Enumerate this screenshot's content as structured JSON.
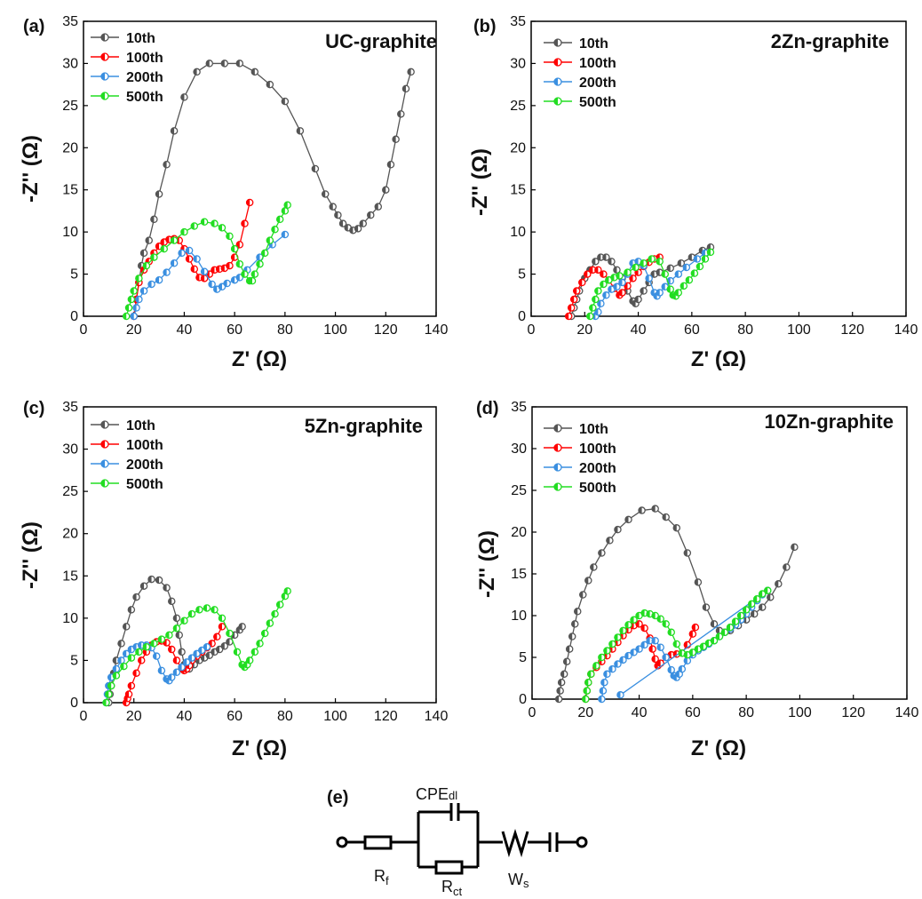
{
  "chart_data": [
    {
      "type": "scatter",
      "panel_label": "(a)",
      "title": "UC-graphite",
      "xlabel": "Z' (Ω)",
      "ylabel": "-Z'' (Ω)",
      "xlim": [
        0,
        140
      ],
      "ylim": [
        0,
        35
      ],
      "xticks": [
        "0",
        "20",
        "40",
        "60",
        "80",
        "100",
        "120",
        "140"
      ],
      "yticks": [
        "0",
        "5",
        "10",
        "15",
        "20",
        "25",
        "30",
        "35"
      ],
      "legend_position": "top-left",
      "series": [
        {
          "name": "10th",
          "color": "#555555",
          "x": [
            20,
            21,
            22,
            23,
            24,
            26,
            28,
            30,
            33,
            36,
            40,
            45,
            50,
            56,
            62,
            68,
            74,
            80,
            86,
            92,
            96,
            99,
            101,
            103,
            105,
            107,
            109,
            111,
            114,
            117,
            120,
            122,
            124,
            126,
            128,
            130
          ],
          "y": [
            0,
            2,
            4,
            6,
            7.5,
            9,
            11.5,
            14.5,
            18,
            22,
            26,
            29,
            30,
            30,
            30,
            29,
            27.5,
            25.5,
            22,
            17.5,
            14.5,
            13,
            12,
            11,
            10.5,
            10.2,
            10.4,
            11,
            12,
            13,
            15,
            18,
            21,
            24,
            27,
            29
          ]
        },
        {
          "name": "100th",
          "color": "#ff0000",
          "x": [
            20,
            21,
            22,
            24,
            26,
            28,
            30,
            32,
            34,
            36,
            38,
            40,
            42,
            44,
            46,
            48,
            50,
            52,
            54,
            56,
            58,
            60,
            62,
            64,
            66
          ],
          "y": [
            0,
            2,
            4,
            5.5,
            6.5,
            7.5,
            8.3,
            8.8,
            9.1,
            9.2,
            9.0,
            8.0,
            6.8,
            5.6,
            4.6,
            4.5,
            5.0,
            5.5,
            5.6,
            5.7,
            6.0,
            7.0,
            8.5,
            11,
            13.5
          ]
        },
        {
          "name": "200th",
          "color": "#3a8fe0",
          "x": [
            20,
            21,
            22,
            24,
            27,
            30,
            33,
            36,
            39,
            42,
            45,
            48,
            51,
            53,
            55,
            57,
            60,
            62,
            65,
            70,
            75,
            80
          ],
          "y": [
            0,
            1,
            2,
            3,
            3.8,
            4.3,
            5.2,
            6.3,
            7.5,
            7.8,
            6.8,
            5.3,
            3.8,
            3.2,
            3.5,
            3.9,
            4.3,
            4.6,
            5.5,
            7.0,
            8.5,
            9.7
          ]
        },
        {
          "name": "500th",
          "color": "#22dd22",
          "x": [
            17,
            18,
            19,
            20,
            22,
            25,
            28,
            32,
            36,
            40,
            44,
            48,
            52,
            55,
            58,
            60,
            62,
            64,
            66,
            67,
            68,
            70,
            72,
            74,
            76,
            78,
            80,
            81
          ],
          "y": [
            0,
            1,
            2,
            3,
            4.5,
            6,
            7,
            8,
            9,
            10,
            10.7,
            11.2,
            11,
            10.5,
            9.5,
            8,
            6.2,
            5,
            4.2,
            4.2,
            5,
            6.2,
            7.5,
            9,
            10.3,
            11.5,
            12.5,
            13.2
          ]
        }
      ]
    },
    {
      "type": "scatter",
      "panel_label": "(b)",
      "title": "2Zn-graphite",
      "xlabel": "Z' (Ω)",
      "ylabel": "-Z'' (Ω)",
      "xlim": [
        0,
        140
      ],
      "ylim": [
        0,
        35
      ],
      "xticks": [
        "0",
        "20",
        "40",
        "60",
        "80",
        "100",
        "120",
        "140"
      ],
      "yticks": [
        "0",
        "5",
        "10",
        "15",
        "20",
        "25",
        "30",
        "35"
      ],
      "legend_position": "top-left",
      "series": [
        {
          "name": "10th",
          "color": "#555555",
          "x": [
            15,
            16,
            17,
            18,
            20,
            22,
            24,
            26,
            28,
            30,
            32,
            34,
            36,
            38,
            39,
            40,
            42,
            44,
            46,
            48,
            52,
            56,
            60,
            64,
            67
          ],
          "y": [
            0,
            1,
            2,
            3,
            4.5,
            5.5,
            6.5,
            7,
            7,
            6.5,
            5.5,
            4.5,
            3,
            1.8,
            1.5,
            2,
            3,
            4,
            5,
            5.2,
            5.7,
            6.3,
            7,
            7.8,
            8.2
          ]
        },
        {
          "name": "100th",
          "color": "#ff0000",
          "x": [
            14,
            15,
            16,
            17,
            19,
            21,
            23,
            25,
            27,
            29,
            31,
            33,
            34,
            36,
            38,
            40,
            42,
            44,
            46,
            48
          ],
          "y": [
            0,
            1,
            2,
            3,
            4,
            5,
            5.5,
            5.5,
            5,
            4.3,
            3.3,
            2.5,
            2.8,
            3.6,
            4.5,
            5.2,
            5.9,
            6.4,
            6.8,
            7
          ]
        },
        {
          "name": "200th",
          "color": "#3a8fe0",
          "x": [
            24,
            25,
            26,
            28,
            30,
            32,
            34,
            36,
            38,
            40,
            42,
            44,
            46,
            47,
            48,
            50,
            52,
            55,
            58,
            62,
            65
          ],
          "y": [
            0,
            0.5,
            1.5,
            2.5,
            3.2,
            3.5,
            4,
            5,
            6.3,
            6.5,
            6,
            4.5,
            2.8,
            2.4,
            2.8,
            3.5,
            4.2,
            5,
            5.8,
            6.8,
            7.5
          ]
        },
        {
          "name": "500th",
          "color": "#22dd22",
          "x": [
            22,
            23,
            24,
            25,
            27,
            29,
            31,
            33,
            36,
            39,
            42,
            45,
            48,
            50,
            52,
            53,
            54,
            55,
            57,
            59,
            61,
            63,
            65,
            67
          ],
          "y": [
            0,
            1,
            2,
            3,
            3.8,
            4.3,
            4.6,
            4.8,
            5.2,
            5.8,
            6.3,
            6.8,
            6.5,
            5,
            3.2,
            2.5,
            2.4,
            2.8,
            3.6,
            4.3,
            5.1,
            5.9,
            6.8,
            7.6
          ]
        }
      ]
    },
    {
      "type": "scatter",
      "panel_label": "(c)",
      "title": "5Zn-graphite",
      "xlabel": "Z' (Ω)",
      "ylabel": "-Z'' (Ω)",
      "xlim": [
        0,
        140
      ],
      "ylim": [
        0,
        35
      ],
      "xticks": [
        "0",
        "20",
        "40",
        "60",
        "80",
        "100",
        "120",
        "140"
      ],
      "yticks": [
        "0",
        "5",
        "10",
        "15",
        "20",
        "25",
        "30",
        "35"
      ],
      "legend_position": "top-left",
      "series": [
        {
          "name": "10th",
          "color": "#555555",
          "x": [
            10,
            10.5,
            11,
            12,
            13,
            15,
            17,
            19,
            21,
            24,
            27,
            30,
            33,
            35,
            37,
            38,
            39,
            40,
            42,
            44,
            46,
            48,
            50,
            52,
            54,
            56,
            58,
            60,
            62,
            63
          ],
          "y": [
            0,
            1,
            2,
            3.5,
            5,
            7,
            9,
            11,
            12.5,
            13.8,
            14.6,
            14.5,
            13.6,
            12,
            10,
            8,
            6,
            4.5,
            4,
            4.5,
            5,
            5.3,
            5.6,
            6,
            6.3,
            6.7,
            7.2,
            8,
            8.6,
            9
          ]
        },
        {
          "name": "100th",
          "color": "#ff0000",
          "x": [
            17,
            17.5,
            18,
            19,
            21,
            23,
            25,
            27,
            29,
            31,
            33,
            35,
            37,
            39,
            40,
            41,
            42,
            43,
            45,
            47,
            49,
            51,
            53,
            55
          ],
          "y": [
            0,
            0.5,
            1,
            2,
            3.5,
            5,
            6,
            6.8,
            7.2,
            7.3,
            7.1,
            6.3,
            5,
            4,
            3.8,
            4,
            4.4,
            5,
            5.5,
            6,
            6.5,
            7,
            7.8,
            9
          ]
        },
        {
          "name": "200th",
          "color": "#3a8fe0",
          "x": [
            9,
            9.5,
            10,
            11,
            13,
            15,
            17,
            19,
            21,
            23,
            25,
            27,
            29,
            31,
            33,
            34,
            35,
            37,
            39,
            41,
            43,
            45,
            47,
            49
          ],
          "y": [
            0,
            1,
            2,
            3,
            4,
            5,
            5.8,
            6.3,
            6.6,
            6.8,
            6.8,
            6.5,
            5.5,
            3.8,
            2.8,
            2.6,
            3,
            3.6,
            4.2,
            4.8,
            5.3,
            5.8,
            6.2,
            6.6
          ]
        },
        {
          "name": "500th",
          "color": "#22dd22",
          "x": [
            9,
            10,
            11,
            13,
            16,
            19,
            22,
            25,
            28,
            31,
            34,
            37,
            40,
            43,
            46,
            49,
            52,
            55,
            58,
            61,
            63,
            64,
            65,
            66,
            68,
            70,
            72,
            74,
            76,
            78,
            80,
            81
          ],
          "y": [
            0,
            1,
            2,
            3.2,
            4.3,
            5.3,
            6,
            6.6,
            7,
            7.5,
            8,
            8.8,
            9.7,
            10.5,
            11,
            11.2,
            11,
            10,
            8.2,
            6,
            4.5,
            4.2,
            4.5,
            5,
            6,
            7,
            8.2,
            9.4,
            10.5,
            11.6,
            12.6,
            13.2
          ]
        }
      ]
    },
    {
      "type": "scatter",
      "panel_label": "(d)",
      "title": "10Zn-graphite",
      "xlabel": "Z' (Ω)",
      "ylabel": "-Z'' (Ω)",
      "xlim": [
        0,
        140
      ],
      "ylim": [
        0,
        35
      ],
      "xticks": [
        "0",
        "20",
        "40",
        "60",
        "80",
        "100",
        "120",
        "140"
      ],
      "yticks": [
        "0",
        "5",
        "10",
        "15",
        "20",
        "25",
        "30",
        "35"
      ],
      "legend_position": "top-left",
      "series": [
        {
          "name": "10th",
          "color": "#555555",
          "x": [
            10,
            10.5,
            11,
            12,
            13,
            14,
            15,
            16,
            17,
            19,
            21,
            23,
            26,
            29,
            32,
            36,
            41,
            46,
            50,
            54,
            58,
            62,
            65,
            68,
            70,
            72,
            74,
            77,
            80,
            83,
            86,
            89,
            92,
            95,
            98
          ],
          "y": [
            0,
            1,
            2,
            3,
            4.5,
            6,
            7.5,
            9,
            10.5,
            12.5,
            14.2,
            15.8,
            17.5,
            19,
            20.3,
            21.5,
            22.6,
            22.8,
            21.8,
            20.5,
            17.5,
            14,
            11,
            9,
            8.2,
            8,
            8.2,
            8.8,
            9.5,
            10.2,
            11,
            12.2,
            13.8,
            15.8,
            18.2
          ]
        },
        {
          "name": "100th",
          "color": "#ff0000",
          "x": [
            20,
            20.5,
            21,
            22,
            24,
            26,
            28,
            30,
            32,
            34,
            36,
            38,
            40,
            42,
            44,
            45,
            46,
            47,
            48,
            50,
            52,
            54,
            56,
            58,
            60,
            61
          ],
          "y": [
            0,
            1,
            2,
            3,
            3.8,
            4.5,
            5.2,
            6,
            6.8,
            7.6,
            8.3,
            8.8,
            9,
            8.5,
            7.3,
            6,
            4.8,
            4,
            4.3,
            5,
            5.3,
            5.4,
            5.5,
            6.5,
            7.8,
            8.6
          ]
        },
        {
          "name": "200th",
          "color": "#3a8fe0",
          "x": [
            26,
            26.5,
            27,
            28,
            30,
            32,
            34,
            36,
            38,
            40,
            42,
            44,
            46,
            48,
            50,
            52,
            53,
            54,
            55,
            56,
            58,
            60,
            62,
            64,
            66,
            68,
            70,
            72,
            74,
            76,
            78,
            80,
            82,
            84,
            86,
            88,
            33
          ],
          "y": [
            0,
            1,
            2,
            3,
            3.6,
            4.2,
            4.7,
            5.2,
            5.6,
            6,
            6.5,
            7,
            7,
            6.2,
            5,
            3.5,
            2.8,
            2.6,
            3,
            3.6,
            4.6,
            5.3,
            5.8,
            6.2,
            6.6,
            7,
            7.5,
            8,
            8.4,
            8.9,
            9.5,
            10.2,
            11,
            11.8,
            12.5,
            13,
            0.5
          ]
        },
        {
          "name": "500th",
          "color": "#22dd22",
          "x": [
            20,
            20.5,
            21,
            22,
            24,
            26,
            28,
            30,
            32,
            34,
            36,
            38,
            40,
            42,
            44,
            46,
            48,
            50,
            52,
            54,
            56,
            58,
            60,
            62,
            64,
            66,
            68,
            70,
            72,
            74,
            76,
            78,
            80,
            82,
            84,
            86,
            88
          ],
          "y": [
            0,
            1,
            2,
            3,
            4,
            5,
            5.8,
            6.6,
            7.4,
            8.2,
            8.9,
            9.5,
            10,
            10.3,
            10.2,
            10,
            9.6,
            9,
            8,
            6.6,
            5.5,
            5.3,
            5.6,
            6,
            6.3,
            6.7,
            7,
            7.5,
            8,
            8.6,
            9.3,
            10,
            10.7,
            11.4,
            12,
            12.6,
            13
          ]
        }
      ]
    }
  ],
  "circuit": {
    "label": "(e)",
    "cpe_label": "CPE",
    "cpe_sub": "dl",
    "rf_label": "R",
    "rf_sub": "f",
    "rct_label": "R",
    "rct_sub": "ct",
    "ws_label": "W",
    "ws_sub": "s"
  }
}
